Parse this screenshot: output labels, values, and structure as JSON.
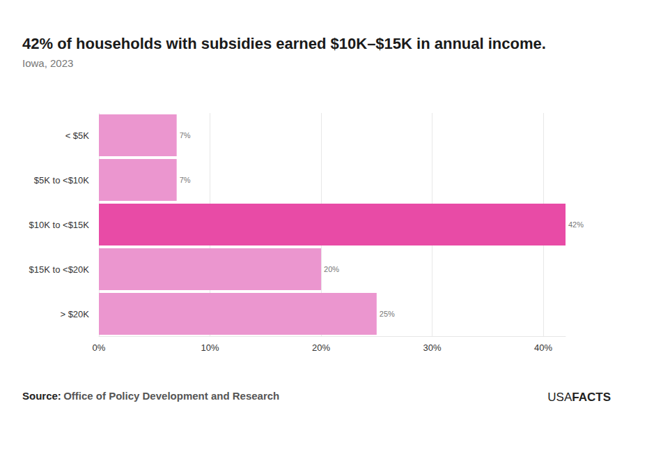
{
  "chart_data": {
    "type": "bar",
    "orientation": "horizontal",
    "title": "42% of households with subsidies earned $10K–$15K in annual income.",
    "subtitle": "Iowa, 2023",
    "categories": [
      "< $5K",
      "$5K to <$10K",
      "$10K to <$15K",
      "$15K to <$20K",
      "> $20K"
    ],
    "values": [
      7,
      7,
      42,
      20,
      25
    ],
    "value_labels": [
      "7%",
      "7%",
      "42%",
      "20%",
      "25%"
    ],
    "colors": [
      "#eb96cf",
      "#eb96cf",
      "#e84ba6",
      "#eb96cf",
      "#eb96cf"
    ],
    "data_labels": true,
    "xlim": [
      0,
      42
    ],
    "xticks": [
      {
        "value": 0,
        "label": "0%"
      },
      {
        "value": 10,
        "label": "10%"
      },
      {
        "value": 20,
        "label": "20%"
      },
      {
        "value": 30,
        "label": "30%"
      },
      {
        "value": 40,
        "label": "40%"
      }
    ],
    "grid": true,
    "source_label": "Source:",
    "source": "Office of Policy Development and Research",
    "logo": [
      "USA",
      "FACTS"
    ]
  }
}
